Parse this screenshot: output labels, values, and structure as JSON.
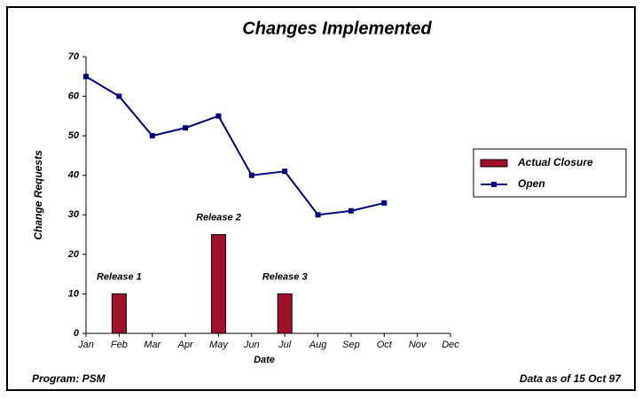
{
  "chart_data": {
    "type": "combo",
    "title": "Changes Implemented",
    "x_label": "Date",
    "y_label": "Change Requests",
    "categories": [
      "Jan",
      "Feb",
      "Mar",
      "Apr",
      "May",
      "Jun",
      "Jul",
      "Aug",
      "Sep",
      "Oct",
      "Nov",
      "Dec"
    ],
    "series": [
      {
        "name": "Actual Closure",
        "type": "bar",
        "color": "#a0102a",
        "values": [
          null,
          10,
          null,
          null,
          25,
          null,
          10,
          null,
          null,
          null,
          null,
          null
        ]
      },
      {
        "name": "Open",
        "type": "line",
        "color": "#000080",
        "values": [
          65,
          60,
          50,
          52,
          55,
          40,
          41,
          30,
          31,
          33,
          null,
          null
        ]
      }
    ],
    "annotations": [
      "Release 1",
      "Release 2",
      "Release 3"
    ],
    "ylim": [
      0,
      70
    ],
    "yticks": [
      0,
      10,
      20,
      30,
      40,
      50,
      60,
      70
    ],
    "legend": "right",
    "footer_left": "Program: PSM",
    "footer_right": "Data as of 15 Oct 97"
  }
}
